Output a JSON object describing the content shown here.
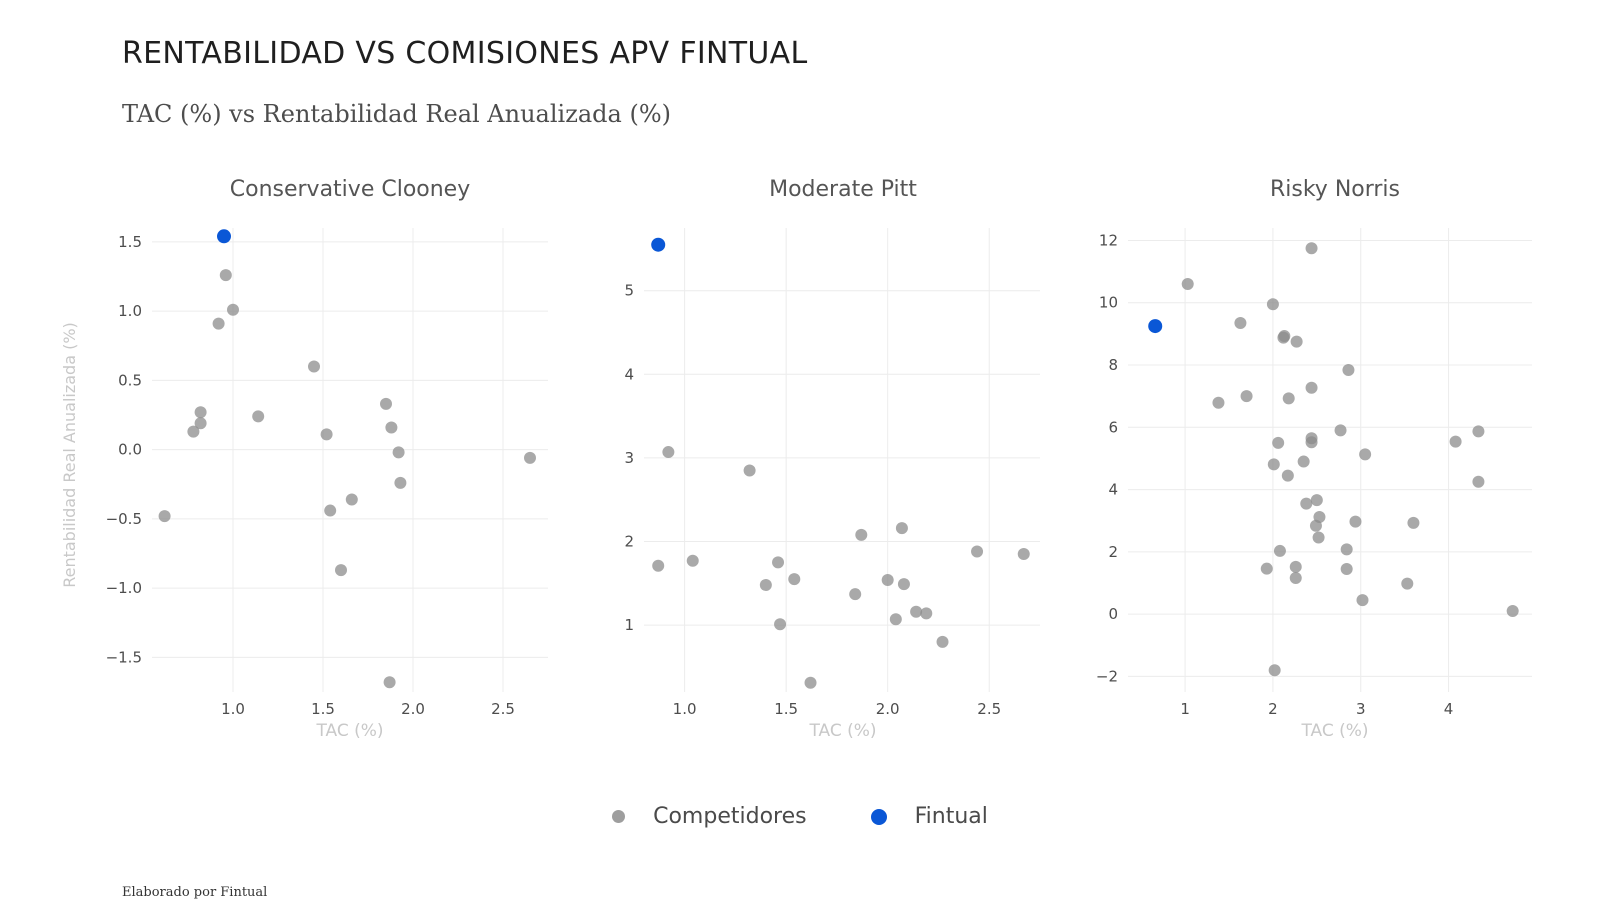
{
  "title": "RENTABILIDAD VS COMISIONES APV FINTUAL",
  "subtitle": "TAC (%) vs Rentabilidad Real Anualizada (%)",
  "caption": "Elaborado por Fintual",
  "legend": {
    "items": [
      {
        "label": "Competidores",
        "color": "#9e9e9e"
      },
      {
        "label": "Fintual",
        "color": "#0a57d6"
      }
    ]
  },
  "colors": {
    "competidores": "#9e9e9e",
    "fintual": "#0a57d6",
    "grid": "#ececec",
    "axis_title": "#c8c8c8",
    "tick": "#4d4d4d",
    "panel_title": "#555555"
  },
  "chart_data": [
    {
      "type": "scatter",
      "title": "Conservative Clooney",
      "xlabel": "TAC (%)",
      "ylabel": "Rentabilidad Real Anualizada (%)",
      "xlim": [
        0.55,
        2.75
      ],
      "ylim": [
        -1.75,
        1.6
      ],
      "xticks": [
        1.0,
        1.5,
        2.0,
        2.5
      ],
      "xtick_labels": [
        "1.0",
        "1.5",
        "2.0",
        "2.5"
      ],
      "yticks": [
        -1.5,
        -1.0,
        -0.5,
        0.0,
        0.5,
        1.0,
        1.5
      ],
      "ytick_labels": [
        "−1.5",
        "−1.0",
        "−0.5",
        "0.0",
        "0.5",
        "1.0",
        "1.5"
      ],
      "grid": true,
      "series": [
        {
          "name": "Competidores",
          "points": [
            [
              0.96,
              1.26
            ],
            [
              1.0,
              1.01
            ],
            [
              0.92,
              0.91
            ],
            [
              1.45,
              0.6
            ],
            [
              1.14,
              0.24
            ],
            [
              0.82,
              0.27
            ],
            [
              0.82,
              0.19
            ],
            [
              0.78,
              0.13
            ],
            [
              1.52,
              0.11
            ],
            [
              1.85,
              0.33
            ],
            [
              1.88,
              0.16
            ],
            [
              1.92,
              -0.02
            ],
            [
              2.65,
              -0.06
            ],
            [
              1.93,
              -0.24
            ],
            [
              1.66,
              -0.36
            ],
            [
              1.54,
              -0.44
            ],
            [
              0.62,
              -0.48
            ],
            [
              1.6,
              -0.87
            ],
            [
              1.87,
              -1.68
            ]
          ]
        },
        {
          "name": "Fintual",
          "points": [
            [
              0.95,
              1.54
            ]
          ]
        }
      ]
    },
    {
      "type": "scatter",
      "title": "Moderate Pitt",
      "xlabel": "TAC (%)",
      "ylabel": "",
      "xlim": [
        0.8,
        2.75
      ],
      "ylim": [
        0.2,
        5.75
      ],
      "xticks": [
        1.0,
        1.5,
        2.0,
        2.5
      ],
      "xtick_labels": [
        "1.0",
        "1.5",
        "2.0",
        "2.5"
      ],
      "yticks": [
        1,
        2,
        3,
        4,
        5
      ],
      "ytick_labels": [
        "1",
        "2",
        "3",
        "4",
        "5"
      ],
      "grid": true,
      "series": [
        {
          "name": "Competidores",
          "points": [
            [
              0.92,
              3.07
            ],
            [
              1.32,
              2.85
            ],
            [
              0.87,
              1.71
            ],
            [
              1.04,
              1.77
            ],
            [
              1.46,
              1.75
            ],
            [
              1.54,
              1.55
            ],
            [
              1.4,
              1.48
            ],
            [
              1.47,
              1.01
            ],
            [
              1.62,
              0.31
            ],
            [
              1.87,
              2.08
            ],
            [
              2.07,
              2.16
            ],
            [
              2.44,
              1.88
            ],
            [
              2.67,
              1.85
            ],
            [
              2.0,
              1.54
            ],
            [
              2.08,
              1.49
            ],
            [
              1.84,
              1.37
            ],
            [
              2.14,
              1.16
            ],
            [
              2.19,
              1.14
            ],
            [
              2.04,
              1.07
            ],
            [
              2.27,
              0.8
            ]
          ]
        },
        {
          "name": "Fintual",
          "points": [
            [
              0.87,
              5.55
            ]
          ]
        }
      ]
    },
    {
      "type": "scatter",
      "title": "Risky Norris",
      "xlabel": "TAC (%)",
      "ylabel": "",
      "xlim": [
        0.35,
        4.95
      ],
      "ylim": [
        -2.5,
        12.4
      ],
      "xticks": [
        1,
        2,
        3,
        4
      ],
      "xtick_labels": [
        "1",
        "2",
        "3",
        "4"
      ],
      "yticks": [
        -2,
        0,
        2,
        4,
        6,
        8,
        10,
        12
      ],
      "ytick_labels": [
        "−2",
        "0",
        "2",
        "4",
        "6",
        "8",
        "10",
        "12"
      ],
      "grid": true,
      "series": [
        {
          "name": "Competidores",
          "points": [
            [
              2.44,
              11.75
            ],
            [
              1.03,
              10.6
            ],
            [
              2.0,
              9.95
            ],
            [
              1.63,
              9.35
            ],
            [
              2.13,
              8.93
            ],
            [
              2.12,
              8.88
            ],
            [
              2.27,
              8.75
            ],
            [
              2.86,
              7.84
            ],
            [
              2.44,
              7.27
            ],
            [
              1.7,
              7.0
            ],
            [
              2.18,
              6.93
            ],
            [
              1.38,
              6.79
            ],
            [
              2.77,
              5.9
            ],
            [
              4.34,
              5.87
            ],
            [
              2.44,
              5.65
            ],
            [
              2.44,
              5.52
            ],
            [
              2.06,
              5.5
            ],
            [
              4.08,
              5.54
            ],
            [
              3.05,
              5.13
            ],
            [
              2.35,
              4.9
            ],
            [
              2.01,
              4.81
            ],
            [
              2.17,
              4.45
            ],
            [
              4.34,
              4.25
            ],
            [
              2.5,
              3.66
            ],
            [
              2.38,
              3.55
            ],
            [
              2.53,
              3.12
            ],
            [
              2.94,
              2.97
            ],
            [
              3.6,
              2.93
            ],
            [
              2.49,
              2.84
            ],
            [
              2.52,
              2.46
            ],
            [
              2.84,
              2.08
            ],
            [
              2.08,
              2.03
            ],
            [
              2.26,
              1.52
            ],
            [
              1.93,
              1.46
            ],
            [
              2.84,
              1.45
            ],
            [
              2.26,
              1.16
            ],
            [
              3.53,
              0.98
            ],
            [
              3.02,
              0.45
            ],
            [
              4.73,
              0.1
            ],
            [
              2.02,
              -1.8
            ]
          ]
        },
        {
          "name": "Fintual",
          "points": [
            [
              0.66,
              9.25
            ]
          ]
        }
      ]
    }
  ]
}
